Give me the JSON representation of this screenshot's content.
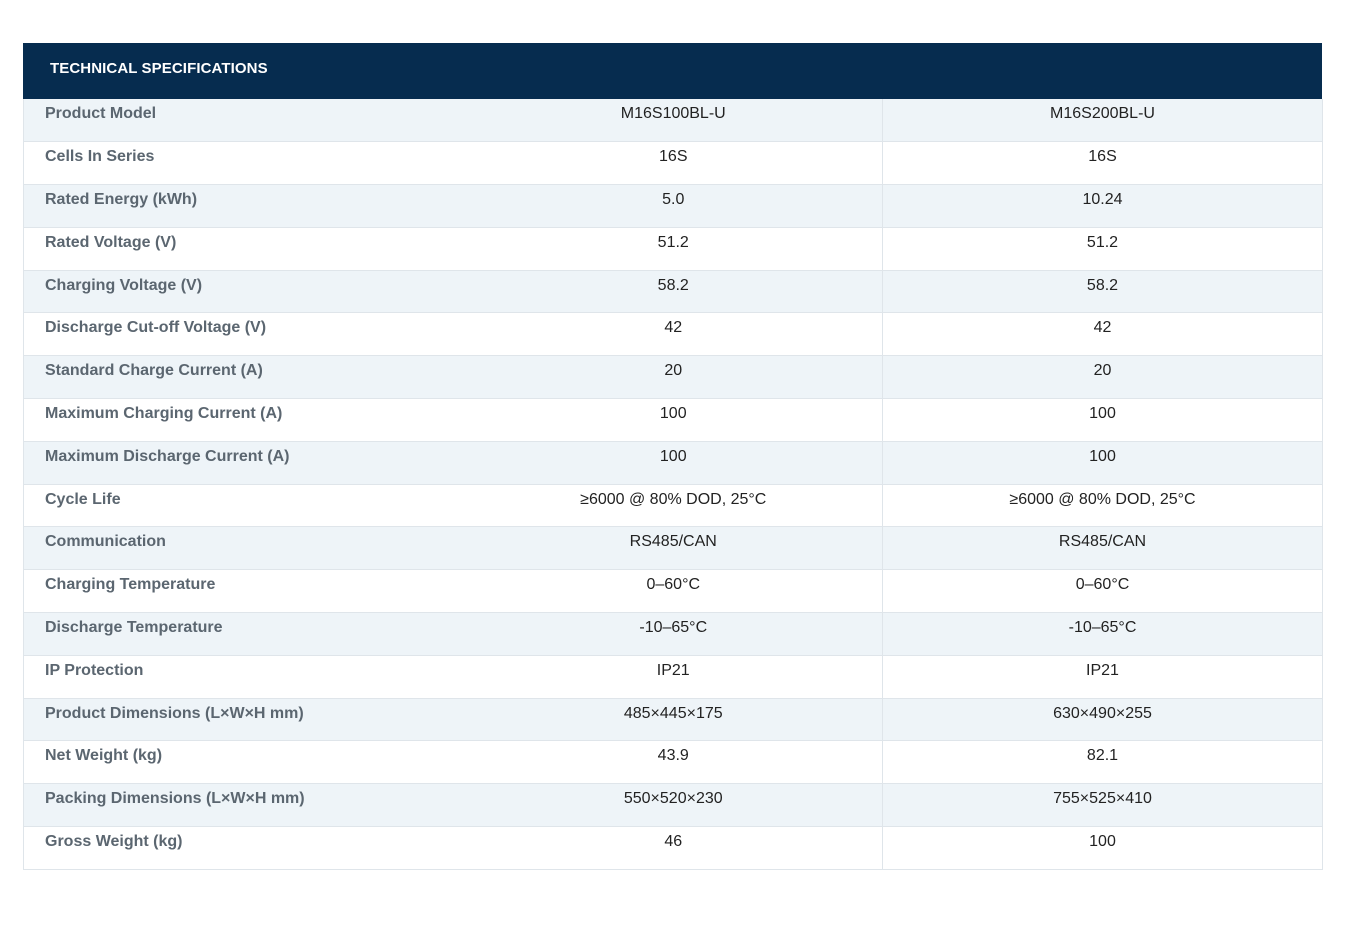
{
  "header": {
    "title": "TECHNICAL SPECIFICATIONS"
  },
  "colors": {
    "header_bg": "#062c4f",
    "row_alt_bg": "#eef4f8",
    "label_text": "#5b6670"
  },
  "rows": [
    {
      "label": "Product Model",
      "v1": "M16S100BL-U",
      "v2": "M16S200BL-U"
    },
    {
      "label": "Cells In Series",
      "v1": "16S",
      "v2": "16S"
    },
    {
      "label": "Rated Energy (kWh)",
      "v1": "5.0",
      "v2": "10.24"
    },
    {
      "label": "Rated Voltage (V)",
      "v1": "51.2",
      "v2": "51.2"
    },
    {
      "label": "Charging Voltage (V)",
      "v1": "58.2",
      "v2": "58.2"
    },
    {
      "label": "Discharge Cut-off Voltage (V)",
      "v1": "42",
      "v2": "42"
    },
    {
      "label": "Standard Charge Current (A)",
      "v1": "20",
      "v2": "20"
    },
    {
      "label": "Maximum Charging Current (A)",
      "v1": "100",
      "v2": "100"
    },
    {
      "label": "Maximum Discharge Current (A)",
      "v1": "100",
      "v2": "100"
    },
    {
      "label": "Cycle Life",
      "v1": "≥6000 @ 80% DOD, 25°C",
      "v2": "≥6000 @ 80% DOD, 25°C"
    },
    {
      "label": "Communication",
      "v1": "RS485/CAN",
      "v2": "RS485/CAN"
    },
    {
      "label": "Charging Temperature",
      "v1": "0–60°C",
      "v2": "0–60°C"
    },
    {
      "label": "Discharge Temperature",
      "v1": "-10–65°C",
      "v2": "-10–65°C"
    },
    {
      "label": "IP Protection",
      "v1": "IP21",
      "v2": "IP21"
    },
    {
      "label": "Product Dimensions (L×W×H mm)",
      "v1": "485×445×175",
      "v2": "630×490×255"
    },
    {
      "label": "Net Weight (kg)",
      "v1": "43.9",
      "v2": "82.1"
    },
    {
      "label": "Packing Dimensions (L×W×H mm)",
      "v1": "550×520×230",
      "v2": "755×525×410"
    },
    {
      "label": "Gross Weight (kg)",
      "v1": "46",
      "v2": "100"
    }
  ]
}
